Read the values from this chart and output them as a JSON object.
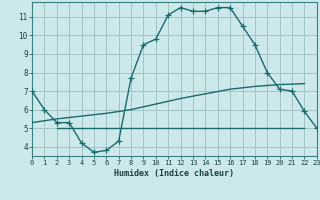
{
  "xlabel": "Humidex (Indice chaleur)",
  "bg_color": "#cce8ea",
  "grid_color": "#9bbfbf",
  "line_color": "#1a6b6b",
  "line1_x": [
    0,
    1,
    2,
    3,
    4,
    5,
    6,
    7,
    8,
    9,
    10,
    11,
    12,
    13,
    14,
    15,
    16,
    17,
    18,
    19,
    20,
    21,
    22,
    23
  ],
  "line1_y": [
    7.0,
    6.0,
    5.3,
    5.3,
    4.2,
    3.7,
    3.8,
    4.3,
    7.7,
    9.5,
    9.8,
    11.1,
    11.5,
    11.3,
    11.3,
    11.5,
    11.5,
    10.5,
    9.5,
    8.0,
    7.1,
    7.0,
    5.9,
    5.0
  ],
  "line2_x": [
    2,
    22
  ],
  "line2_y": [
    5.0,
    5.0
  ],
  "line3_x": [
    0,
    2,
    4,
    6,
    8,
    10,
    12,
    14,
    16,
    18,
    20,
    22
  ],
  "line3_y": [
    5.3,
    5.5,
    5.65,
    5.8,
    6.0,
    6.3,
    6.6,
    6.85,
    7.1,
    7.25,
    7.35,
    7.4
  ],
  "xlim": [
    0,
    23
  ],
  "ylim": [
    3.5,
    11.8
  ],
  "yticks": [
    4,
    5,
    6,
    7,
    8,
    9,
    10,
    11
  ],
  "xticks": [
    0,
    1,
    2,
    3,
    4,
    5,
    6,
    7,
    8,
    9,
    10,
    11,
    12,
    13,
    14,
    15,
    16,
    17,
    18,
    19,
    20,
    21,
    22,
    23
  ],
  "xlabel_fontsize": 6.0,
  "tick_fontsize": 5.0,
  "linewidth": 1.0,
  "markersize": 4.0
}
